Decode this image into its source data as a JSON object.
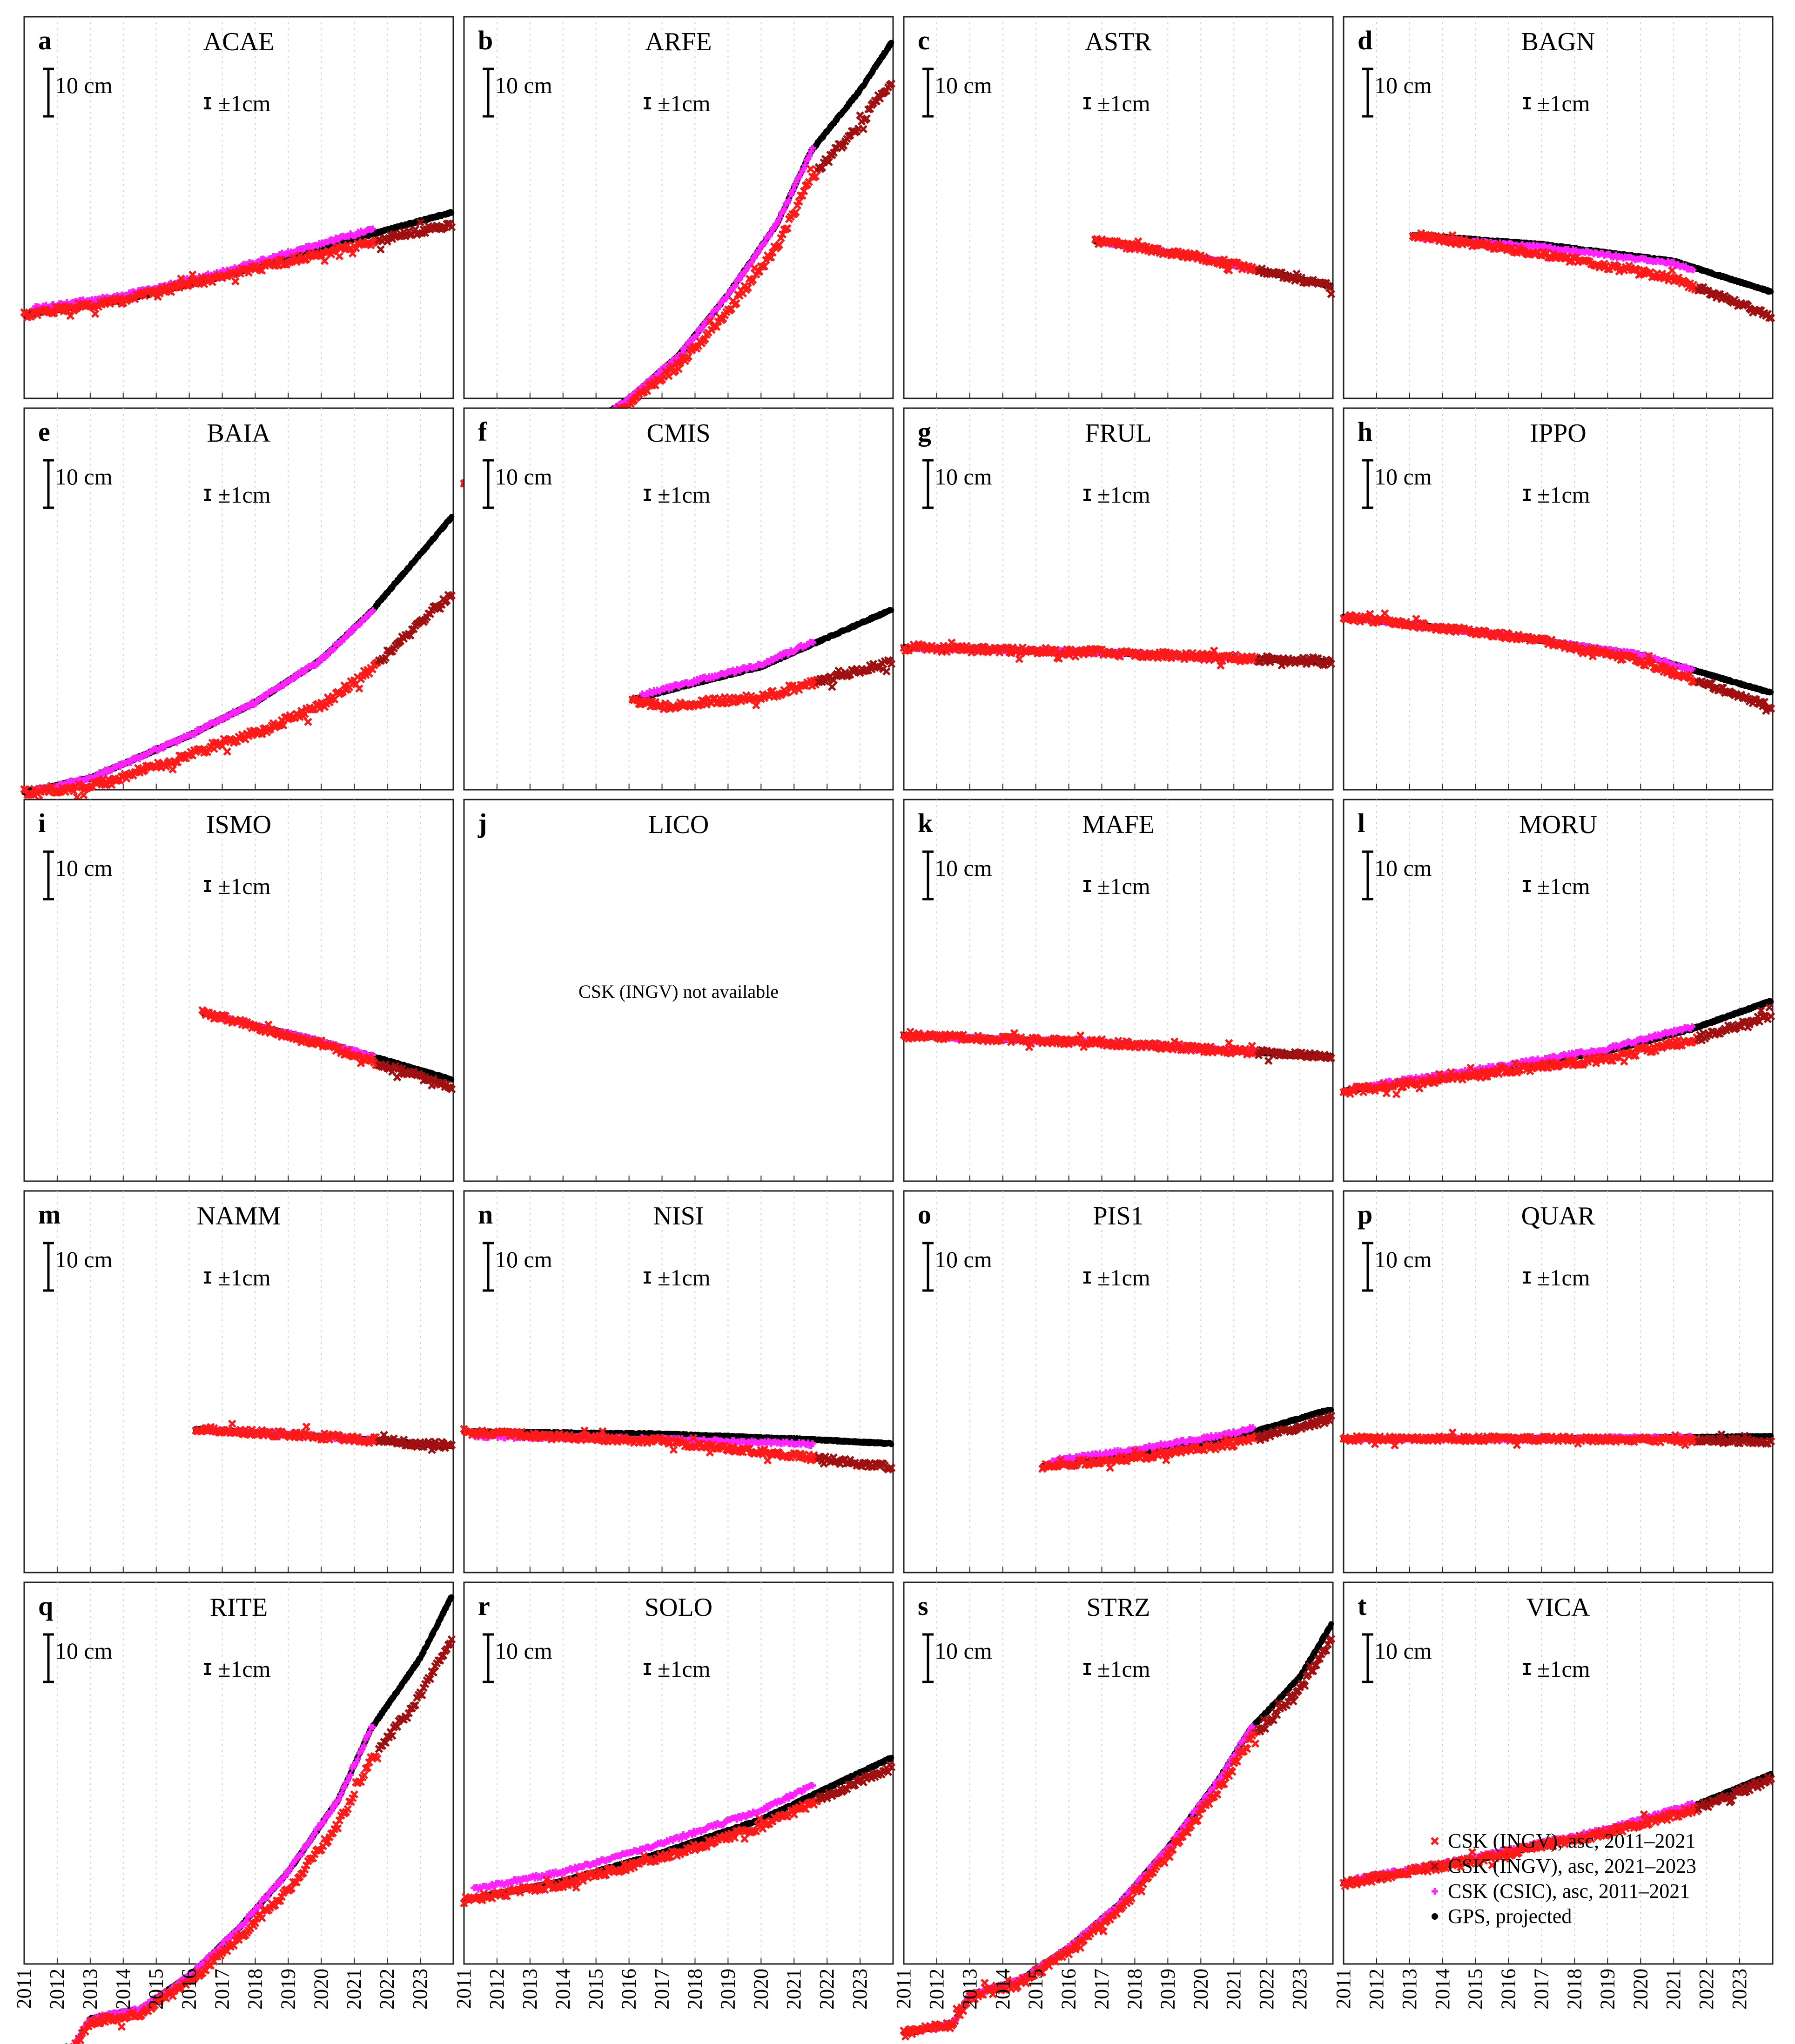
{
  "figure": {
    "x_tick_labels": [
      "2011",
      "2012",
      "2013",
      "2014",
      "2015",
      "2016",
      "2017",
      "2018",
      "2019",
      "2020",
      "2021",
      "2022",
      "2023"
    ],
    "scale_bar_label": "10 cm",
    "error_bar_label": "±1cm",
    "legend": [
      {
        "label": "CSK (INGV), asc, 2011–2021",
        "color": "#ff1a1a",
        "marker": "x"
      },
      {
        "label": "CSK (INGV), asc, 2021–2023",
        "color": "#a01010",
        "marker": "x"
      },
      {
        "label": "CSK (CSIC), asc, 2011–2021",
        "color": "#ff22ff",
        "marker": "+"
      },
      {
        "label": "GPS, projected",
        "color": "#000000",
        "marker": "dot"
      }
    ]
  },
  "chart_data": [
    {
      "letter": "a",
      "station": "ACAE",
      "type": "scatter",
      "start": 2011.0,
      "end": 2023.95,
      "anchors": [
        [
          2011,
          0
        ],
        [
          2014,
          3.0
        ],
        [
          2017,
          8.0
        ],
        [
          2020,
          14.0
        ],
        [
          2023.95,
          21.5
        ]
      ],
      "ingv_offset": [
        0,
        0,
        -2.5
      ],
      "csic_offset": 1.0,
      "noise": 0.9,
      "xlim": [
        2011,
        2024
      ],
      "ylabel": "10 cm"
    },
    {
      "letter": "b",
      "station": "ARFE",
      "type": "scatter",
      "start": 2011.0,
      "end": 2023.95,
      "anchors": [
        [
          2011,
          0
        ],
        [
          2012.5,
          2.0
        ],
        [
          2013.3,
          9.0
        ],
        [
          2014.5,
          11.0
        ],
        [
          2016,
          18.0
        ],
        [
          2017.5,
          27.0
        ],
        [
          2019,
          40.0
        ],
        [
          2020.5,
          55.0
        ],
        [
          2021.5,
          70.0
        ],
        [
          2023,
          83.0
        ],
        [
          2023.95,
          93.0
        ]
      ],
      "ingv_offset": [
        0,
        -1.5,
        -8.0
      ],
      "csic_offset": 0,
      "noise": 1.0,
      "xlim": [
        2011,
        2024
      ],
      "ylabel": "10 cm"
    },
    {
      "letter": "c",
      "station": "ASTR",
      "type": "scatter",
      "start": 2016.8,
      "end": 2023.95,
      "anchors": [
        [
          2016.8,
          0
        ],
        [
          2020,
          -3.5
        ],
        [
          2023.95,
          -9.5
        ]
      ],
      "ingv_offset": [
        0,
        0,
        0
      ],
      "csic_offset": 0,
      "noise": 0.8,
      "xlim": [
        2011,
        2024
      ],
      "ylabel": "10 cm"
    },
    {
      "letter": "d",
      "station": "BAGN",
      "type": "scatter",
      "start": 2013.1,
      "end": 2023.95,
      "anchors": [
        [
          2013.1,
          0
        ],
        [
          2017,
          -2.0
        ],
        [
          2021,
          -5.5
        ],
        [
          2023.95,
          -12.0
        ]
      ],
      "ingv_offset": [
        0,
        -2.0,
        -5.0
      ],
      "csic_offset": -0.5,
      "noise": 0.8,
      "xlim": [
        2011,
        2024
      ],
      "ylabel": "10 cm"
    },
    {
      "letter": "e",
      "station": "BAIA",
      "type": "scatter",
      "start": 2011.0,
      "end": 2023.95,
      "anchors": [
        [
          2011,
          0
        ],
        [
          2013,
          3.0
        ],
        [
          2016,
          12.0
        ],
        [
          2018,
          19.0
        ],
        [
          2020,
          28.0
        ],
        [
          2021.5,
          38.0
        ],
        [
          2023.95,
          58.0
        ]
      ],
      "ingv_offset": [
        0,
        -5.0,
        -16.0
      ],
      "csic_offset": 0,
      "noise": 1.0,
      "xlim": [
        2011,
        2024
      ],
      "ylabel": "10 cm"
    },
    {
      "letter": "f",
      "station": "CMIS",
      "type": "scatter",
      "start": 2016.1,
      "end": 2023.95,
      "anchors": [
        [
          2016.1,
          0
        ],
        [
          2018,
          3.5
        ],
        [
          2020,
          7.0
        ],
        [
          2023.95,
          19.0
        ]
      ],
      "ingv_offset": [
        0,
        -3.0,
        -11.0
      ],
      "csic_offset": 0.5,
      "noise": 0.9,
      "xlim": [
        2011,
        2024
      ],
      "ylabel": "10 cm"
    },
    {
      "letter": "g",
      "station": "FRUL",
      "type": "scatter",
      "start": 2011.0,
      "end": 2023.95,
      "anchors": [
        [
          2011,
          0
        ],
        [
          2017,
          -1.0
        ],
        [
          2023.95,
          -3.0
        ]
      ],
      "ingv_offset": [
        0,
        0,
        0
      ],
      "csic_offset": 0,
      "noise": 0.9,
      "xlim": [
        2011,
        2024
      ],
      "ylabel": "10 cm"
    },
    {
      "letter": "h",
      "station": "IPPO",
      "type": "scatter",
      "start": 2011.0,
      "end": 2023.95,
      "anchors": [
        [
          2011,
          0
        ],
        [
          2016,
          -4.0
        ],
        [
          2020,
          -8.0
        ],
        [
          2023.95,
          -16.0
        ]
      ],
      "ingv_offset": [
        0,
        0,
        -3.0
      ],
      "csic_offset": 0,
      "noise": 0.8,
      "xlim": [
        2011,
        2024
      ],
      "ylabel": "10 cm"
    },
    {
      "letter": "i",
      "station": "ISMO",
      "type": "scatter",
      "start": 2016.4,
      "end": 2023.95,
      "anchors": [
        [
          2016.4,
          0
        ],
        [
          2020,
          -6.0
        ],
        [
          2023.95,
          -14.0
        ]
      ],
      "ingv_offset": [
        0,
        0,
        -1.5
      ],
      "csic_offset": 0,
      "noise": 0.8,
      "xlim": [
        2011,
        2024
      ],
      "ylabel": "10 cm"
    },
    {
      "letter": "j",
      "station": "LICO",
      "type": "scatter",
      "start": null,
      "end": null,
      "anchors": [],
      "ingv_offset": [
        0,
        0,
        0
      ],
      "csic_offset": 0,
      "noise": 0,
      "xlim": [
        2011,
        2024
      ],
      "ylabel": "",
      "note": "CSK (INGV) not available"
    },
    {
      "letter": "k",
      "station": "MAFE",
      "type": "scatter",
      "start": 2011.0,
      "end": 2023.95,
      "anchors": [
        [
          2011,
          0
        ],
        [
          2017,
          -1.5
        ],
        [
          2023.95,
          -4.5
        ]
      ],
      "ingv_offset": [
        0,
        0,
        0
      ],
      "csic_offset": 0,
      "noise": 0.8,
      "xlim": [
        2011,
        2024
      ],
      "ylabel": "10 cm"
    },
    {
      "letter": "l",
      "station": "MORU",
      "type": "scatter",
      "start": 2011.0,
      "end": 2023.95,
      "anchors": [
        [
          2011,
          0
        ],
        [
          2015,
          4.0
        ],
        [
          2019,
          8.5
        ],
        [
          2021.5,
          13.0
        ],
        [
          2023.95,
          19.0
        ]
      ],
      "ingv_offset": [
        0,
        -1.0,
        -3.0
      ],
      "csic_offset": 0.5,
      "noise": 0.9,
      "xlim": [
        2011,
        2024
      ],
      "ylabel": "10 cm"
    },
    {
      "letter": "m",
      "station": "NAMM",
      "type": "scatter",
      "start": 2016.2,
      "end": 2023.95,
      "anchors": [
        [
          2016.2,
          0
        ],
        [
          2020,
          -1.5
        ],
        [
          2023.95,
          -3.5
        ]
      ],
      "ingv_offset": [
        0,
        0,
        0
      ],
      "csic_offset": 0,
      "noise": 0.9,
      "xlim": [
        2011,
        2024
      ],
      "ylabel": "10 cm"
    },
    {
      "letter": "n",
      "station": "NISI",
      "type": "scatter",
      "start": 2011.0,
      "end": 2023.95,
      "anchors": [
        [
          2011,
          0
        ],
        [
          2017,
          -0.5
        ],
        [
          2021,
          -1.5
        ],
        [
          2023.95,
          -2.5
        ]
      ],
      "ingv_offset": [
        0,
        -1.5,
        -5.0
      ],
      "csic_offset": -1.0,
      "noise": 0.8,
      "xlim": [
        2011,
        2024
      ],
      "ylabel": "10 cm"
    },
    {
      "letter": "o",
      "station": "PIS1",
      "type": "scatter",
      "start": 2015.2,
      "end": 2023.95,
      "anchors": [
        [
          2015.2,
          0
        ],
        [
          2018,
          2.5
        ],
        [
          2021,
          6.0
        ],
        [
          2023.95,
          12.0
        ]
      ],
      "ingv_offset": [
        0,
        -0.5,
        -2.0
      ],
      "csic_offset": 1.0,
      "noise": 0.8,
      "xlim": [
        2011,
        2024
      ],
      "ylabel": "10 cm"
    },
    {
      "letter": "p",
      "station": "QUAR",
      "type": "scatter",
      "start": 2011.0,
      "end": 2023.95,
      "anchors": [
        [
          2011,
          0
        ],
        [
          2017,
          0.0
        ],
        [
          2023.95,
          0.5
        ]
      ],
      "ingv_offset": [
        0,
        0,
        -1.0
      ],
      "csic_offset": 0,
      "noise": 0.7,
      "xlim": [
        2011,
        2024
      ],
      "ylabel": "10 cm"
    },
    {
      "letter": "q",
      "station": "RITE",
      "type": "scatter",
      "start": 2011.0,
      "end": 2023.95,
      "anchors": [
        [
          2011,
          0
        ],
        [
          2012.5,
          3.0
        ],
        [
          2013,
          9.0
        ],
        [
          2014.5,
          11.0
        ],
        [
          2016,
          18.0
        ],
        [
          2017.5,
          28.0
        ],
        [
          2019,
          40.0
        ],
        [
          2020.5,
          55.0
        ],
        [
          2021.5,
          70.0
        ],
        [
          2023,
          85.0
        ],
        [
          2023.95,
          98.0
        ]
      ],
      "ingv_offset": [
        0,
        -1.5,
        -9.0
      ],
      "csic_offset": 0,
      "noise": 1.0,
      "xlim": [
        2011,
        2024
      ],
      "ylabel": "10 cm"
    },
    {
      "letter": "r",
      "station": "SOLO",
      "type": "scatter",
      "start": 2011.0,
      "end": 2023.95,
      "anchors": [
        [
          2011,
          0
        ],
        [
          2014,
          4.0
        ],
        [
          2017,
          10.0
        ],
        [
          2020,
          17.0
        ],
        [
          2023.95,
          30.0
        ]
      ],
      "ingv_offset": [
        0,
        -1.0,
        -2.0
      ],
      "csic_offset": 2.0,
      "noise": 0.9,
      "xlim": [
        2011,
        2024
      ],
      "ylabel": "10 cm"
    },
    {
      "letter": "s",
      "station": "STRZ",
      "type": "scatter",
      "start": 2011.0,
      "end": 2023.95,
      "anchors": [
        [
          2011,
          0
        ],
        [
          2012.5,
          2.0
        ],
        [
          2013,
          8.0
        ],
        [
          2014.5,
          11.0
        ],
        [
          2016,
          18.0
        ],
        [
          2017.5,
          27.0
        ],
        [
          2019,
          39.0
        ],
        [
          2020.5,
          53.0
        ],
        [
          2021.5,
          64.0
        ],
        [
          2023,
          75.0
        ],
        [
          2023.95,
          86.0
        ]
      ],
      "ingv_offset": [
        0,
        -1.0,
        -3.0
      ],
      "csic_offset": 0,
      "noise": 1.0,
      "xlim": [
        2011,
        2024
      ],
      "ylabel": "10 cm"
    },
    {
      "letter": "t",
      "station": "VICA",
      "type": "scatter",
      "start": 2011.0,
      "end": 2023.95,
      "anchors": [
        [
          2011,
          0
        ],
        [
          2015,
          5.0
        ],
        [
          2019,
          11.0
        ],
        [
          2021.5,
          16.0
        ],
        [
          2023.95,
          23.0
        ]
      ],
      "ingv_offset": [
        0,
        0,
        -1.0
      ],
      "csic_offset": 0.5,
      "noise": 0.9,
      "xlim": [
        2011,
        2024
      ],
      "ylabel": "10 cm"
    }
  ]
}
